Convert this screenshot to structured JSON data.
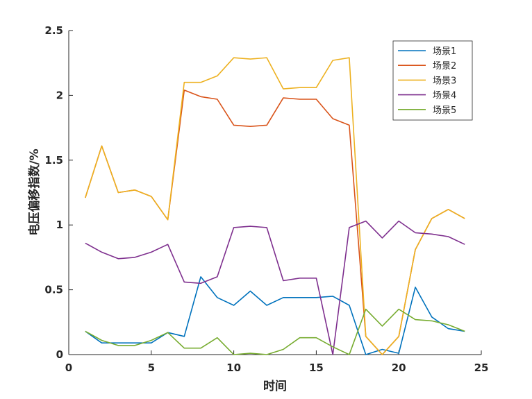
{
  "chart_data": {
    "type": "line",
    "xlabel": "时间",
    "ylabel": "电压偏移指数/%",
    "xlim": [
      0,
      25
    ],
    "ylim": [
      0,
      2.5
    ],
    "xticks": [
      "0",
      "5",
      "10",
      "15",
      "20",
      "25"
    ],
    "yticks": [
      "0",
      "0.5",
      "1",
      "1.5",
      "2",
      "2.5"
    ],
    "grid": false,
    "legend_position": "top-right",
    "x": [
      1,
      2,
      3,
      4,
      5,
      6,
      7,
      8,
      9,
      10,
      11,
      12,
      13,
      14,
      15,
      16,
      17,
      18,
      19,
      20,
      21,
      22,
      23,
      24
    ],
    "series": [
      {
        "name": "场景1",
        "color": "#0072BD",
        "values": [
          0.18,
          0.09,
          0.09,
          0.09,
          0.09,
          0.17,
          0.14,
          0.6,
          0.44,
          0.38,
          0.49,
          0.38,
          0.44,
          0.44,
          0.44,
          0.45,
          0.38,
          0.0,
          0.04,
          0.01,
          0.52,
          0.29,
          0.2,
          0.18
        ]
      },
      {
        "name": "场景2",
        "color": "#D95319",
        "values": [
          1.21,
          1.61,
          1.25,
          1.27,
          1.22,
          1.04,
          2.04,
          1.99,
          1.97,
          1.77,
          1.76,
          1.77,
          1.98,
          1.97,
          1.97,
          1.82,
          1.77,
          0.14,
          0.0,
          0.14,
          0.81,
          1.05,
          1.12,
          1.05
        ]
      },
      {
        "name": "场景3",
        "color": "#EDB120",
        "values": [
          1.21,
          1.61,
          1.25,
          1.27,
          1.22,
          1.04,
          2.1,
          2.1,
          2.15,
          2.29,
          2.28,
          2.29,
          2.05,
          2.06,
          2.06,
          2.27,
          2.29,
          0.14,
          0.0,
          0.14,
          0.81,
          1.05,
          1.12,
          1.05
        ]
      },
      {
        "name": "场景4",
        "color": "#7E2F8E",
        "values": [
          0.86,
          0.79,
          0.74,
          0.75,
          0.79,
          0.85,
          0.56,
          0.55,
          0.6,
          0.98,
          0.99,
          0.98,
          0.57,
          0.59,
          0.59,
          0.0,
          0.98,
          1.03,
          0.9,
          1.03,
          0.94,
          0.93,
          0.91,
          0.85
        ]
      },
      {
        "name": "场景5",
        "color": "#77AC30",
        "values": [
          0.18,
          0.11,
          0.07,
          0.07,
          0.11,
          0.17,
          0.05,
          0.05,
          0.13,
          0.0,
          0.01,
          0.0,
          0.04,
          0.13,
          0.13,
          0.06,
          0.0,
          0.35,
          0.22,
          0.35,
          0.27,
          0.26,
          0.23,
          0.18
        ]
      }
    ]
  }
}
